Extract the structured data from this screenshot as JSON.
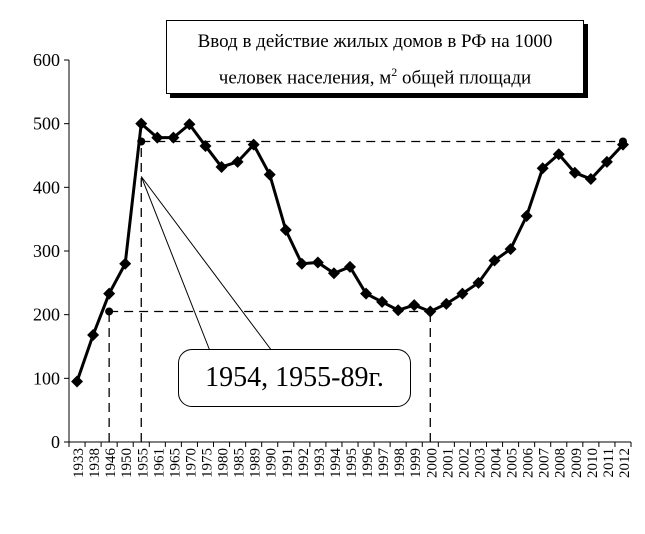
{
  "chart_data": {
    "type": "line",
    "title_line1": "Ввод в действие жилых домов в РФ на 1000",
    "title_line2_prefix": "человек населения, м",
    "title_line2_sup": "2",
    "title_line2_suffix": " общей площади",
    "ylim": [
      0,
      600
    ],
    "yticks": [
      "0",
      "100",
      "200",
      "300",
      "400",
      "500",
      "600"
    ],
    "categories": [
      "1933",
      "1938",
      "1946",
      "1950",
      "1955",
      "1961",
      "1965",
      "1970",
      "1975",
      "1980",
      "1985",
      "1989",
      "1990",
      "1991",
      "1992",
      "1993",
      "1994",
      "1995",
      "1996",
      "1997",
      "1998",
      "1999",
      "2000",
      "2001",
      "2002",
      "2003",
      "2004",
      "2005",
      "2006",
      "2007",
      "2008",
      "2009",
      "2010",
      "2011",
      "2012"
    ],
    "series": [
      {
        "values": [
          95,
          168,
          233,
          280,
          500,
          478,
          478,
          499,
          465,
          432,
          440,
          467,
          420,
          333,
          280,
          282,
          265,
          275,
          233,
          220,
          207,
          215,
          205,
          217,
          233,
          250,
          285,
          303,
          355,
          430,
          452,
          423,
          413,
          440,
          467
        ]
      }
    ],
    "reference_points": [
      {
        "x": "1955",
        "y": 472
      },
      {
        "x": "1946",
        "y": 205
      },
      {
        "x": "2012",
        "y": 472
      }
    ],
    "reference_lines": [
      {
        "y": 472,
        "from": "1955",
        "to": "2012"
      },
      {
        "y": 205,
        "from": "1946",
        "to": "2000"
      },
      {
        "x": "1946",
        "from_y": 0,
        "to_y": 205
      },
      {
        "x": "1955",
        "from_y": 0,
        "to_y": 472
      },
      {
        "x": "2000",
        "from_y": 0,
        "to_y": 205
      }
    ],
    "annotation": "1954, 1955-89г."
  }
}
